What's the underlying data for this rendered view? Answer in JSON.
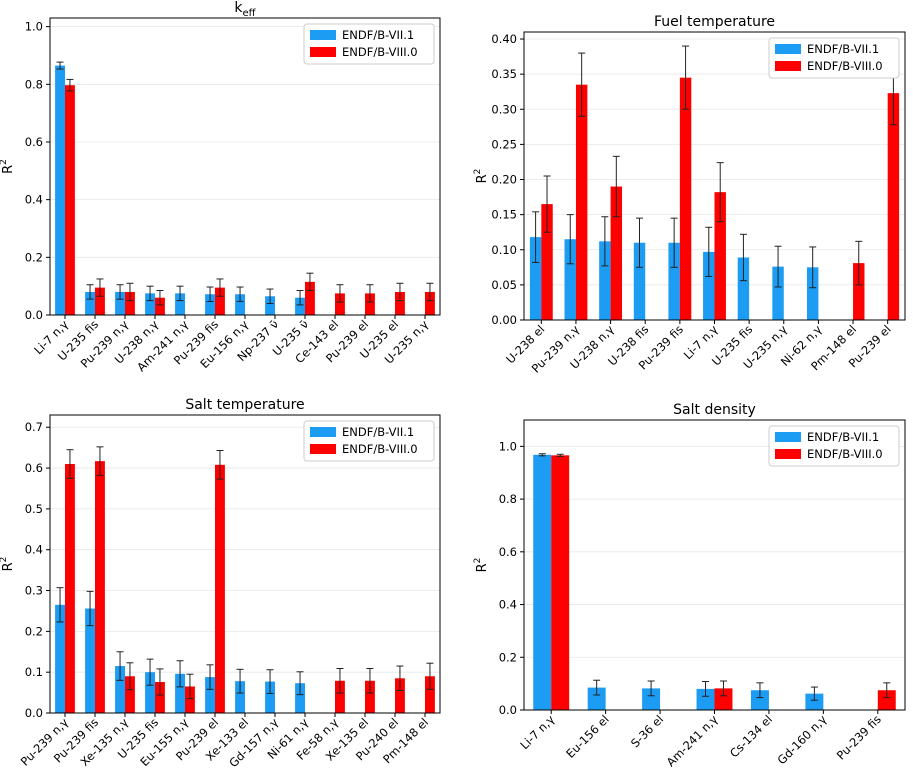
{
  "chart_data": [
    {
      "type": "bar",
      "title": "k",
      "title_subscript": "eff",
      "ylabel": "R",
      "ylabel_superscript": "2",
      "ylim": [
        0,
        1.03
      ],
      "yticks": [
        "0.0",
        "0.2",
        "0.4",
        "0.6",
        "0.8",
        "1.0"
      ],
      "ytick_values": [
        0,
        0.2,
        0.4,
        0.6,
        0.8,
        1.0
      ],
      "categories": [
        "Li-7 n,γ",
        "U-235 fis",
        "Pu-239 n,γ",
        "U-238 n,γ",
        "Am-241 n,γ",
        "Pu-239 fis",
        "Eu-156 n,γ",
        "Np-237 ν̄",
        "U-235 ν̄",
        "Ce-143 el",
        "Pu-239 el",
        "U-235 el",
        "U-235 n,γ"
      ],
      "legend_position": "top-right",
      "series": [
        {
          "name": "ENDF/B-VII.1",
          "color": "#1c9cf2",
          "values": [
            0.865,
            0.08,
            0.08,
            0.075,
            0.075,
            0.072,
            0.072,
            0.065,
            0.06,
            0,
            0,
            0,
            0
          ],
          "errors": [
            0.012,
            0.025,
            0.025,
            0.025,
            0.025,
            0.025,
            0.025,
            0.025,
            0.025,
            0,
            0,
            0,
            0
          ]
        },
        {
          "name": "ENDF/B-VIII.0",
          "color": "#ff0000",
          "values": [
            0.797,
            0.095,
            0.08,
            0.06,
            0,
            0.095,
            0,
            0,
            0.115,
            0.075,
            0.075,
            0.08,
            0.08
          ],
          "errors": [
            0.02,
            0.03,
            0.03,
            0.025,
            0,
            0.03,
            0,
            0,
            0.03,
            0.03,
            0.03,
            0.03,
            0.03
          ]
        }
      ]
    },
    {
      "type": "bar",
      "title": "Fuel temperature",
      "ylabel": "R",
      "ylabel_superscript": "2",
      "ylim": [
        0,
        0.41
      ],
      "yticks": [
        "0.00",
        "0.05",
        "0.10",
        "0.15",
        "0.20",
        "0.25",
        "0.30",
        "0.35",
        "0.40"
      ],
      "ytick_values": [
        0,
        0.05,
        0.1,
        0.15,
        0.2,
        0.25,
        0.3,
        0.35,
        0.4
      ],
      "categories": [
        "U-238 el",
        "Pu-239 n,γ",
        "U-238 n,γ",
        "U-238 fis",
        "Pu-239 fis",
        "Li-7 n,γ",
        "U-235 fis",
        "U-235 n,γ",
        "Ni-62 n,γ",
        "Pm-148 el",
        "Pu-239 el"
      ],
      "legend_position": "top-right",
      "series": [
        {
          "name": "ENDF/B-VII.1",
          "color": "#1c9cf2",
          "values": [
            0.118,
            0.115,
            0.112,
            0.11,
            0.11,
            0.097,
            0.089,
            0.076,
            0.075,
            0,
            0
          ],
          "errors": [
            0.036,
            0.035,
            0.035,
            0.035,
            0.035,
            0.035,
            0.033,
            0.029,
            0.029,
            0,
            0
          ]
        },
        {
          "name": "ENDF/B-VIII.0",
          "color": "#ff0000",
          "values": [
            0.165,
            0.335,
            0.19,
            0,
            0.345,
            0.182,
            0,
            0,
            0,
            0.081,
            0.323
          ],
          "errors": [
            0.04,
            0.045,
            0.043,
            0,
            0.045,
            0.042,
            0,
            0,
            0,
            0.031,
            0.045
          ]
        }
      ]
    },
    {
      "type": "bar",
      "title": "Salt temperature",
      "ylabel": "R",
      "ylabel_superscript": "2",
      "ylim": [
        0,
        0.73
      ],
      "yticks": [
        "0.0",
        "0.1",
        "0.2",
        "0.3",
        "0.4",
        "0.5",
        "0.6",
        "0.7"
      ],
      "ytick_values": [
        0,
        0.1,
        0.2,
        0.3,
        0.4,
        0.5,
        0.6,
        0.7
      ],
      "categories": [
        "Pu-239 n,γ",
        "Pu-239 fis",
        "Xe-135 n,γ",
        "U-235 fis",
        "Eu-155 n,γ",
        "Pu-239 el",
        "Xe-133 el",
        "Gd-157 n,γ",
        "Ni-61 n,γ",
        "Fe-58 n,γ",
        "Xe-135 el",
        "Pu-240 el",
        "Pm-148 el"
      ],
      "legend_position": "top-right",
      "series": [
        {
          "name": "ENDF/B-VII.1",
          "color": "#1c9cf2",
          "values": [
            0.265,
            0.256,
            0.115,
            0.1,
            0.096,
            0.088,
            0.078,
            0.077,
            0.073,
            0,
            0,
            0,
            0
          ],
          "errors": [
            0.042,
            0.042,
            0.035,
            0.032,
            0.032,
            0.03,
            0.029,
            0.029,
            0.028,
            0,
            0,
            0,
            0
          ]
        },
        {
          "name": "ENDF/B-VIII.0",
          "color": "#ff0000",
          "values": [
            0.61,
            0.617,
            0.09,
            0.076,
            0.065,
            0.608,
            0,
            0,
            0,
            0.079,
            0.079,
            0.085,
            0.09
          ],
          "errors": [
            0.035,
            0.035,
            0.033,
            0.032,
            0.03,
            0.035,
            0,
            0,
            0,
            0.03,
            0.03,
            0.03,
            0.032
          ]
        }
      ]
    },
    {
      "type": "bar",
      "title": "Salt density",
      "ylabel": "R",
      "ylabel_superscript": "2",
      "ylim": [
        0,
        1.1
      ],
      "yticks": [
        "0.0",
        "0.2",
        "0.4",
        "0.6",
        "0.8",
        "1.0"
      ],
      "ytick_values": [
        0,
        0.2,
        0.4,
        0.6,
        0.8,
        1.0
      ],
      "categories": [
        "Li-7 n,γ",
        "Eu-156 el",
        "S-36 el",
        "Am-241 n,γ",
        "Cs-134 el",
        "Gd-160 n,γ",
        "Pu-239 fis"
      ],
      "legend_position": "top-right",
      "series": [
        {
          "name": "ENDF/B-VII.1",
          "color": "#1c9cf2",
          "values": [
            0.968,
            0.085,
            0.082,
            0.08,
            0.075,
            0.062,
            0
          ],
          "errors": [
            0.004,
            0.028,
            0.028,
            0.028,
            0.028,
            0.025,
            0
          ]
        },
        {
          "name": "ENDF/B-VIII.0",
          "color": "#ff0000",
          "values": [
            0.966,
            0,
            0,
            0.082,
            0,
            0,
            0.075
          ],
          "errors": [
            0.004,
            0,
            0,
            0.028,
            0,
            0,
            0.028
          ]
        }
      ]
    }
  ]
}
